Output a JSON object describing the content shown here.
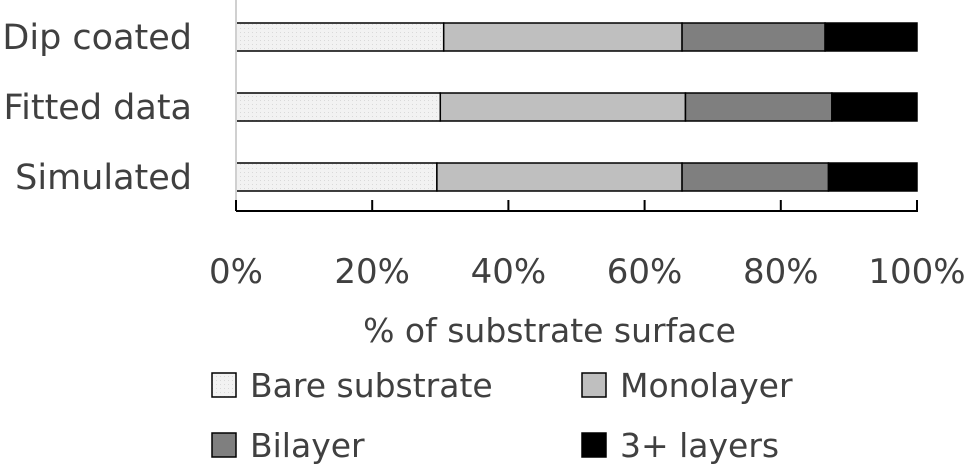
{
  "chart_data": {
    "type": "bar",
    "orientation": "horizontal",
    "stacked": true,
    "percent_scale": true,
    "categories": [
      "Dip coated",
      "Fitted data",
      "Simulated"
    ],
    "series": [
      {
        "name": "Bare substrate",
        "values": [
          30.5,
          30.0,
          29.5
        ],
        "color": "#f2f2f2"
      },
      {
        "name": "Monolayer",
        "values": [
          35.0,
          36.0,
          36.0
        ],
        "color": "#bfbfbf"
      },
      {
        "name": "Bilayer",
        "values": [
          21.0,
          21.5,
          21.5
        ],
        "color": "#7f7f7f"
      },
      {
        "name": "3+ layers",
        "values": [
          13.5,
          12.5,
          13.0
        ],
        "color": "#000000"
      }
    ],
    "xlabel": "% of substrate surface",
    "ylabel": "",
    "title": "",
    "xlim": [
      0,
      100
    ],
    "xticks": [
      "0%",
      "20%",
      "40%",
      "60%",
      "80%",
      "100%"
    ],
    "grid": false,
    "legend_position": "bottom"
  }
}
